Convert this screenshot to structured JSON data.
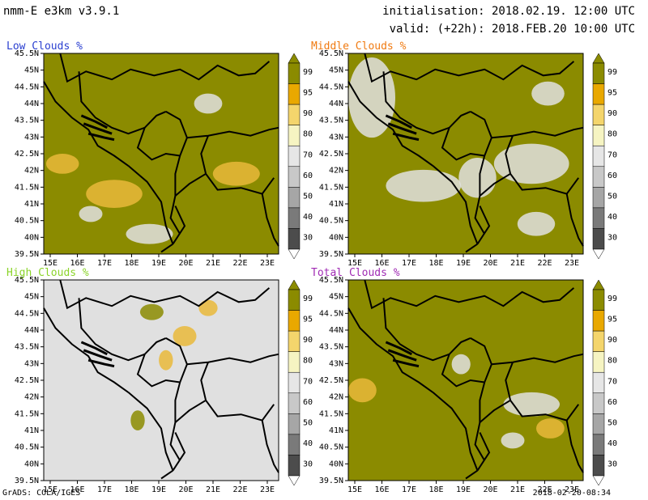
{
  "header": {
    "title": "nmm-E e3km v3.9.1",
    "initialisation": "initialisation: 2018.02.19. 12:00 UTC",
    "valid": "valid: (+22h): 2018.FEB.20 10:00 UTC"
  },
  "panels": [
    {
      "title": "Low Clouds %",
      "title_color": "#2a3fd0"
    },
    {
      "title": "Middle Clouds %",
      "title_color": "#f07a10"
    },
    {
      "title": "High Clouds %",
      "title_color": "#8bd42a"
    },
    {
      "title": "Total Clouds %",
      "title_color": "#a02bb4"
    }
  ],
  "axes": {
    "lat_labels": [
      "45.5N",
      "45N",
      "44.5N",
      "44N",
      "43.5N",
      "43N",
      "42.5N",
      "42N",
      "41.5N",
      "41N",
      "40.5N",
      "40N",
      "39.5N"
    ],
    "lon_labels": [
      "15E",
      "16E",
      "17E",
      "18E",
      "19E",
      "20E",
      "21E",
      "22E",
      "23E"
    ]
  },
  "colorbar": {
    "labels": [
      "99",
      "95",
      "90",
      "80",
      "70",
      "60",
      "50",
      "40",
      "30"
    ],
    "colors": [
      "#8b8b00",
      "#e9a800",
      "#f4d56c",
      "#f6f4c2",
      "#e6e6e6",
      "#c8c8c8",
      "#a6a6a6",
      "#7a7a7a",
      "#4c4c4c"
    ]
  },
  "footer": {
    "left": "GrADS: COLA/IGES",
    "right": "2018-02-20-08:34"
  },
  "colors": {
    "olive": "#8b8b00",
    "grey": "#e0e0e0",
    "yellow": "#e9b93a",
    "border": "#000000"
  }
}
